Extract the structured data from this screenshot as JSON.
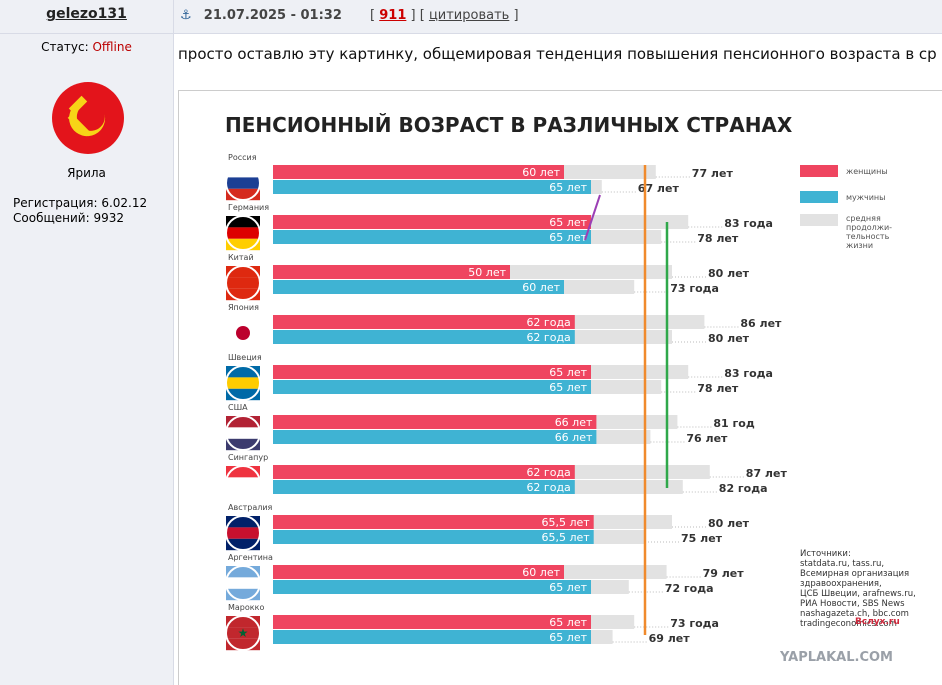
{
  "post": {
    "author": "gelezo131",
    "date": "21.07.2025 - 01:32",
    "bracket_open": "[",
    "post_number": "911",
    "bracket_mid": "] [",
    "quote": "цитировать",
    "bracket_close": "]",
    "status_label": "Статус:",
    "status": "Offline",
    "rank": "Ярила",
    "registration": "Регистрация: 6.02.12",
    "messages": "Сообщений: 9932",
    "text": "просто оставлю эту картинку, общемировая тенденция повышения пенсионного возраста в ср"
  },
  "infographic": {
    "title": "ПЕНСИОННЫЙ ВОЗРАСТ В РАЗЛИЧНЫХ СТРАНАХ",
    "legend": {
      "women": "женщины",
      "men": "мужчины",
      "life": [
        "средняя",
        "продолжи-",
        "тельность",
        "жизни"
      ]
    },
    "countries": [
      {
        "name": "Россия",
        "women": 60,
        "women_label": "60 лет",
        "men": 65,
        "men_label": "65 лет",
        "life_women": 77,
        "life_women_label": "77 лет",
        "life_men": 67,
        "life_men_label": "67 лет"
      },
      {
        "name": "Германия",
        "women": 65,
        "women_label": "65 лет",
        "men": 65,
        "men_label": "65 лет",
        "life_women": 83,
        "life_women_label": "83 года",
        "life_men": 78,
        "life_men_label": "78 лет"
      },
      {
        "name": "Китай",
        "women": 50,
        "women_label": "50 лет",
        "men": 60,
        "men_label": "60 лет",
        "life_women": 80,
        "life_women_label": "80 лет",
        "life_men": 73,
        "life_men_label": "73 года"
      },
      {
        "name": "Япония",
        "women": 62,
        "women_label": "62 года",
        "men": 62,
        "men_label": "62 года",
        "life_women": 86,
        "life_women_label": "86 лет",
        "life_men": 80,
        "life_men_label": "80 лет"
      },
      {
        "name": "Швеция",
        "women": 65,
        "women_label": "65 лет",
        "men": 65,
        "men_label": "65 лет",
        "life_women": 83,
        "life_women_label": "83 года",
        "life_men": 78,
        "life_men_label": "78 лет"
      },
      {
        "name": "США",
        "women": 66,
        "women_label": "66 лет",
        "men": 66,
        "men_label": "66 лет",
        "life_women": 81,
        "life_women_label": "81 год",
        "life_men": 76,
        "life_men_label": "76 лет"
      },
      {
        "name": "Сингапур",
        "women": 62,
        "women_label": "62 года",
        "men": 62,
        "men_label": "62 года",
        "life_women": 87,
        "life_women_label": "87 лет",
        "life_men": 82,
        "life_men_label": "82 года"
      },
      {
        "name": "Австралия",
        "women": 65.5,
        "women_label": "65,5 лет",
        "men": 65.5,
        "men_label": "65,5 лет",
        "life_women": 80,
        "life_women_label": "80 лет",
        "life_men": 75,
        "life_men_label": "75 лет"
      },
      {
        "name": "Аргентина",
        "women": 60,
        "women_label": "60 лет",
        "men": 65,
        "men_label": "65 лет",
        "life_women": 79,
        "life_women_label": "79 лет",
        "life_men": 72,
        "life_men_label": "72 года"
      },
      {
        "name": "Марокко",
        "women": 65,
        "women_label": "65 лет",
        "men": 65,
        "men_label": "65 лет",
        "life_women": 73,
        "life_women_label": "73 года",
        "life_men": 69,
        "life_men_label": "69 лет"
      }
    ],
    "sources": [
      "Источники:",
      "statdata.ru, tass.ru,",
      "Всемирная организация",
      "здравоохранения,",
      "ЦСБ Швеции, arafnews.ru,",
      "РИА Новости, SBS News",
      "nashagazeta.ch, bbc.com",
      "tradingeconomics.com"
    ],
    "credit": "Вслух.ru"
  },
  "watermark": "YAPLAKAL.COM"
}
